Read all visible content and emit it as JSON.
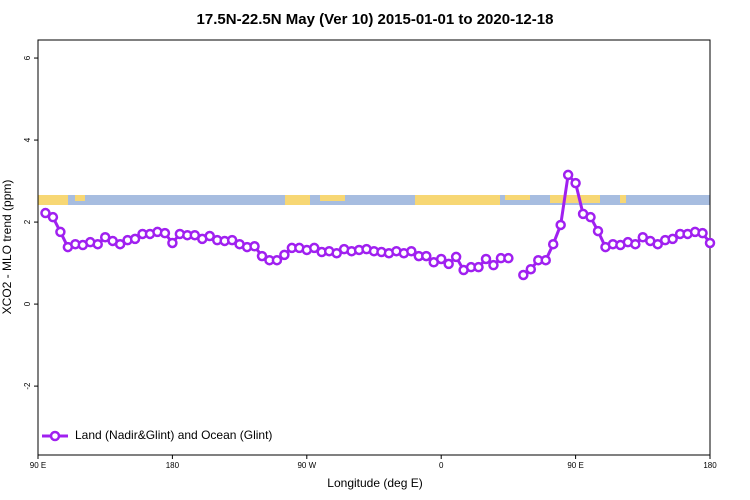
{
  "chart_data": {
    "type": "line",
    "title": "17.5N-22.5N May (Ver 10)   2015-01-01 to 2020-12-18",
    "x_label": "Longitude (deg E)",
    "y_label": "XCO2 - MLO trend (ppm)",
    "x": [
      95,
      100,
      105,
      110,
      115,
      120,
      125,
      130,
      135,
      140,
      145,
      150,
      155,
      160,
      165,
      170,
      175,
      180,
      185,
      190,
      195,
      200,
      205,
      210,
      215,
      220,
      225,
      230,
      235,
      240,
      245,
      250,
      255,
      260,
      265,
      270,
      275,
      280,
      285,
      290,
      295,
      300,
      305,
      310,
      315,
      320,
      325,
      330,
      335,
      340,
      345,
      350,
      355,
      360,
      365,
      370,
      375,
      380,
      385,
      390,
      395,
      400,
      405,
      410,
      415,
      420,
      425,
      430,
      435,
      440,
      445,
      450,
      455,
      460,
      465,
      470,
      475,
      480,
      485,
      490,
      495,
      500,
      505,
      510,
      515,
      520,
      525,
      530,
      535,
      540
    ],
    "series": [
      {
        "name": "Land (Nadir&Glint) and Ocean (Glint)",
        "color": "#a020f0",
        "values": [
          2.22,
          2.12,
          1.76,
          1.39,
          1.46,
          1.44,
          1.51,
          1.46,
          1.63,
          1.54,
          1.46,
          1.56,
          1.59,
          1.71,
          1.71,
          1.76,
          1.73,
          1.49,
          1.71,
          1.68,
          1.68,
          1.59,
          1.66,
          1.56,
          1.54,
          1.56,
          1.46,
          1.39,
          1.41,
          1.17,
          1.07,
          1.07,
          1.2,
          1.37,
          1.37,
          1.32,
          1.37,
          1.27,
          1.29,
          1.24,
          1.34,
          1.29,
          1.32,
          1.34,
          1.29,
          1.27,
          1.24,
          1.29,
          1.24,
          1.29,
          1.17,
          1.17,
          1.02,
          1.1,
          0.98,
          1.15,
          0.83,
          0.9,
          0.9,
          1.1,
          0.95,
          1.12,
          1.12,
          null,
          0.71,
          0.85,
          1.07,
          1.07,
          1.46,
          1.93,
          3.15,
          2.95,
          2.2,
          2.12,
          1.78,
          1.39,
          1.46,
          1.44,
          1.51,
          1.46,
          1.63,
          1.54,
          1.46,
          1.56,
          1.59,
          1.71,
          1.71,
          1.76,
          1.73,
          1.49
        ]
      }
    ],
    "xlim": [
      90,
      540
    ],
    "xticks": [
      {
        "value": 90,
        "label": "90 E"
      },
      180,
      {
        "value": 270,
        "label": "90 W"
      },
      {
        "value": 360,
        "label": "0"
      },
      {
        "value": 450,
        "label": "90 E"
      },
      {
        "value": 540,
        "label": "180"
      }
    ],
    "ylim": [
      -3.68,
      6.44
    ],
    "yticks": [
      -2,
      0,
      2,
      4,
      6
    ],
    "legend": "bottom-left"
  }
}
